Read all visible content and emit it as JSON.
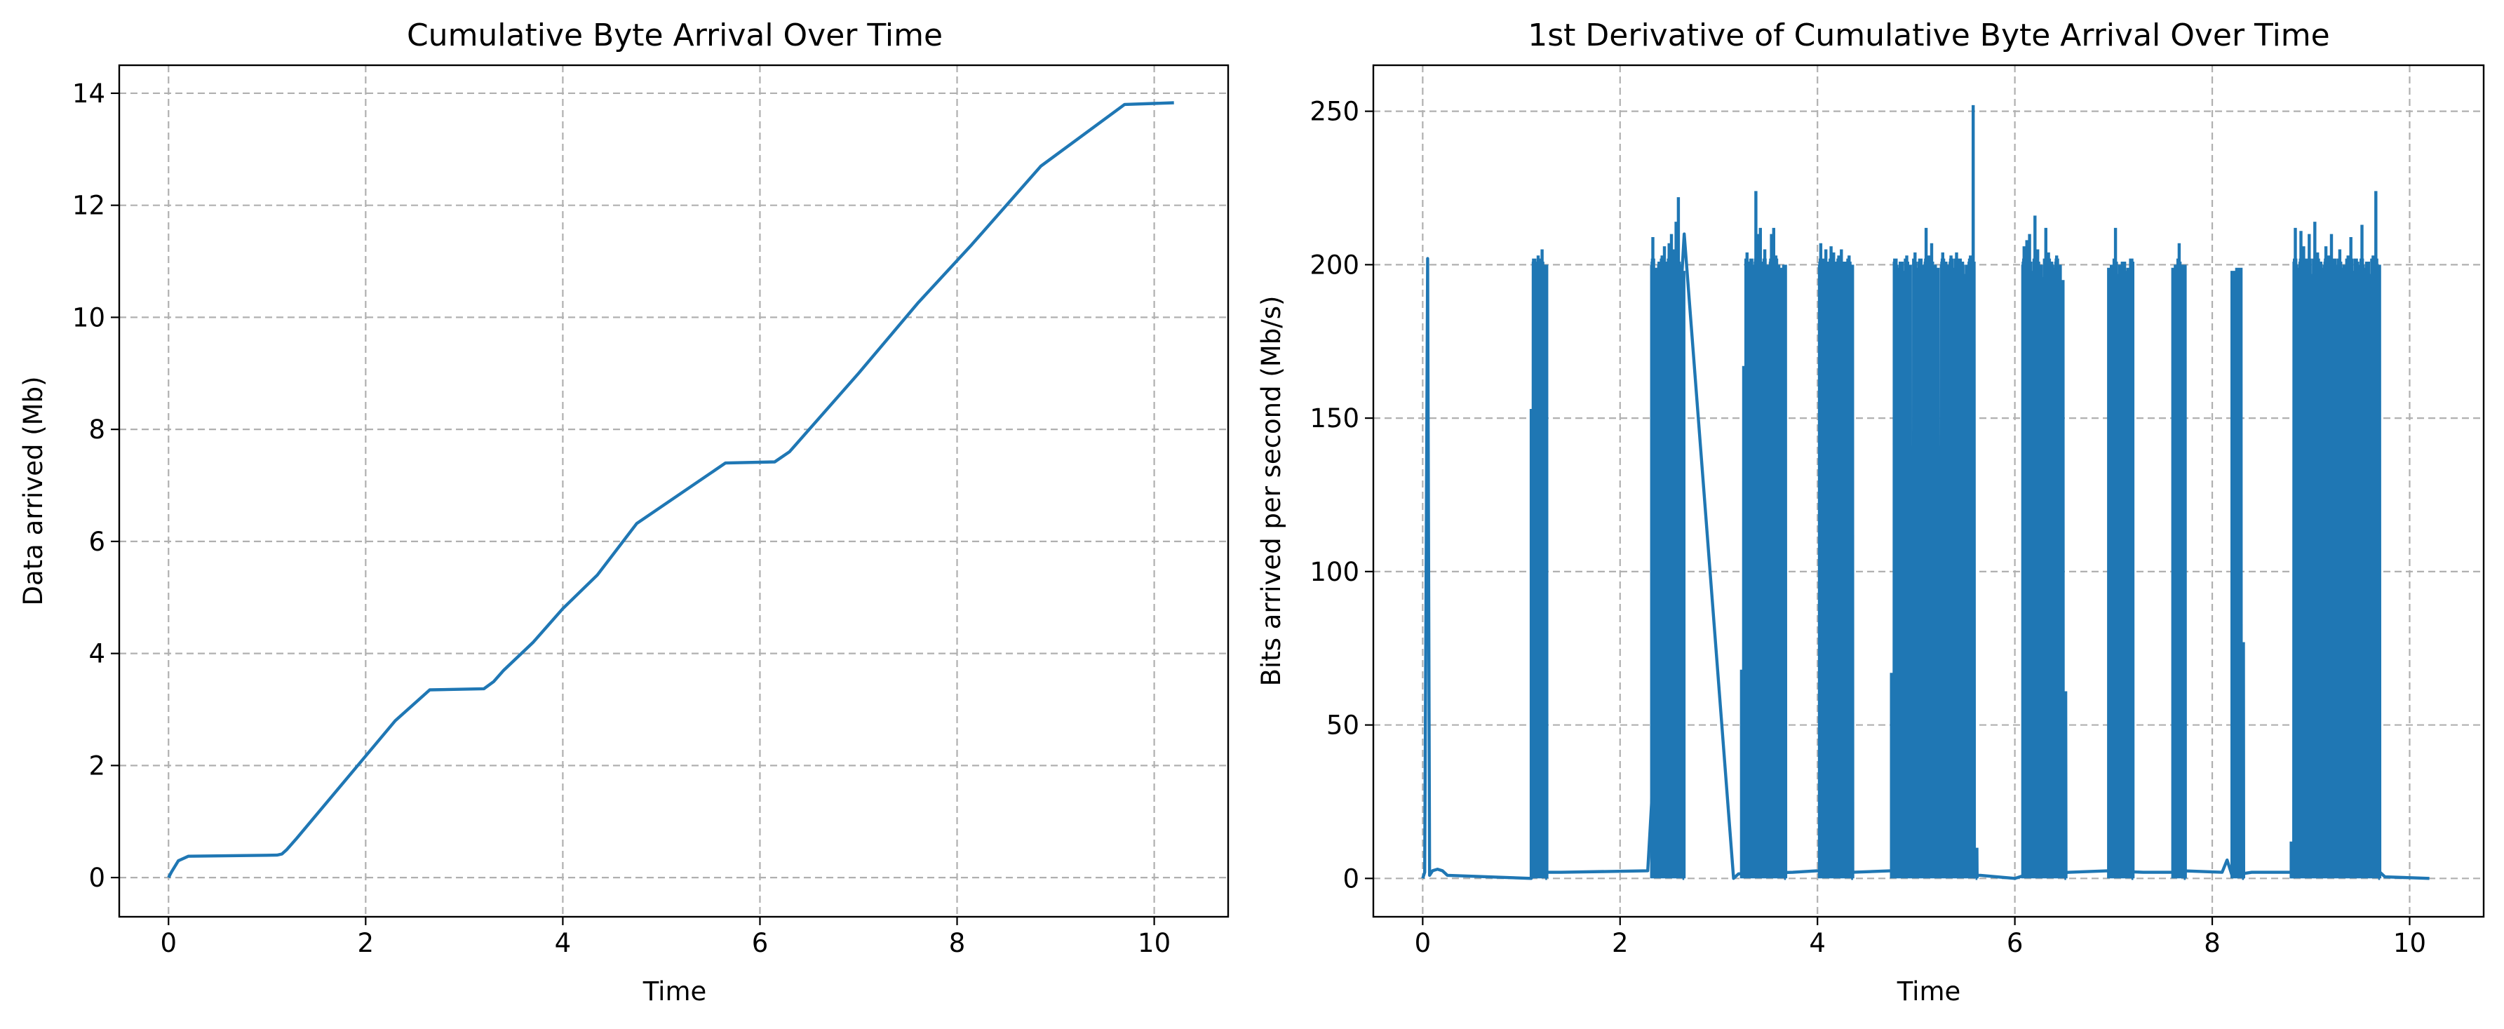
{
  "chart_data": [
    {
      "type": "line",
      "title": "Cumulative Byte Arrival Over Time",
      "xlabel": "Time",
      "ylabel": "Data arrived (Mb)",
      "xlim": [
        -0.5,
        10.75
      ],
      "ylim": [
        -0.7,
        14.5
      ],
      "xticks": [
        0,
        2,
        4,
        6,
        8,
        10
      ],
      "yticks": [
        0,
        2,
        4,
        6,
        8,
        10,
        12,
        14
      ],
      "grid": true,
      "series": [
        {
          "color": "#1f77b4",
          "points": [
            [
              0,
              0
            ],
            [
              0.03,
              0.1
            ],
            [
              0.1,
              0.3
            ],
            [
              0.2,
              0.38
            ],
            [
              1.1,
              0.4
            ],
            [
              1.15,
              0.42
            ],
            [
              1.2,
              0.5
            ],
            [
              1.3,
              0.7
            ],
            [
              2.3,
              2.8
            ],
            [
              2.65,
              3.35
            ],
            [
              3.2,
              3.37
            ],
            [
              3.3,
              3.5
            ],
            [
              3.4,
              3.7
            ],
            [
              3.7,
              4.2
            ],
            [
              4.0,
              4.8
            ],
            [
              4.35,
              5.4
            ],
            [
              4.75,
              6.32
            ],
            [
              5.65,
              7.4
            ],
            [
              6.15,
              7.42
            ],
            [
              6.3,
              7.6
            ],
            [
              6.4,
              7.8
            ],
            [
              7.0,
              9.0
            ],
            [
              7.6,
              10.25
            ],
            [
              8.15,
              11.3
            ],
            [
              8.85,
              12.7
            ],
            [
              9.7,
              13.8
            ],
            [
              10.2,
              13.83
            ]
          ]
        }
      ]
    },
    {
      "type": "line",
      "title": "1st Derivative of Cumulative Byte Arrival Over Time",
      "xlabel": "Time",
      "ylabel": "Bits arrived per second (Mb/s)",
      "xlim": [
        -0.5,
        10.75
      ],
      "ylim": [
        -12.5,
        265
      ],
      "xticks": [
        0,
        2,
        4,
        6,
        8,
        10
      ],
      "yticks": [
        0,
        50,
        100,
        150,
        200,
        250
      ],
      "grid": true,
      "baseline_points": [
        [
          0.0,
          0
        ],
        [
          0.02,
          2
        ],
        [
          0.05,
          202
        ],
        [
          0.07,
          1
        ],
        [
          0.1,
          2.5
        ],
        [
          0.15,
          3
        ],
        [
          0.2,
          2.5
        ],
        [
          0.25,
          1
        ],
        [
          1.1,
          0
        ],
        [
          1.12,
          2
        ],
        [
          1.4,
          2
        ],
        [
          2.28,
          2.5
        ],
        [
          2.65,
          210
        ],
        [
          3.15,
          0
        ],
        [
          3.2,
          1.5
        ],
        [
          3.75,
          2
        ],
        [
          4.0,
          2.5
        ],
        [
          4.1,
          2
        ],
        [
          4.35,
          2
        ],
        [
          4.75,
          2.5
        ],
        [
          5.6,
          1
        ],
        [
          5.65,
          1
        ],
        [
          6.0,
          0
        ],
        [
          6.1,
          1
        ],
        [
          6.55,
          2
        ],
        [
          6.95,
          2.5
        ],
        [
          7.3,
          2
        ],
        [
          7.6,
          2
        ],
        [
          7.7,
          2.5
        ],
        [
          8.1,
          2
        ],
        [
          8.15,
          6
        ],
        [
          8.2,
          1
        ],
        [
          8.4,
          2
        ],
        [
          8.8,
          2
        ],
        [
          9.7,
          2
        ],
        [
          9.75,
          0.5
        ],
        [
          10.2,
          0
        ]
      ],
      "bursts": [
        {
          "start": 1.1,
          "end": 1.26,
          "peaks": [
            153,
            202,
            200,
            203,
            199,
            205,
            180,
            200
          ]
        },
        {
          "start": 2.32,
          "end": 2.65,
          "peaks": [
            209,
            195,
            199,
            201,
            203,
            206,
            200,
            207,
            210,
            205,
            214,
            222,
            200,
            198
          ]
        },
        {
          "start": 3.23,
          "end": 3.68,
          "peaks": [
            68,
            167,
            204,
            195,
            202,
            200,
            224,
            210,
            212,
            201,
            205,
            198,
            200,
            210,
            212,
            203,
            200,
            199,
            195,
            200
          ]
        },
        {
          "start": 4.02,
          "end": 4.36,
          "peaks": [
            207,
            200,
            205,
            198,
            206,
            204,
            200,
            203,
            205,
            201,
            199,
            203,
            200
          ]
        },
        {
          "start": 4.75,
          "end": 5.62,
          "peaks": [
            67,
            202,
            199,
            201,
            198,
            203,
            200,
            110,
            204,
            199,
            202,
            200,
            212,
            203,
            207,
            200,
            199,
            102,
            204,
            201,
            200,
            203,
            199,
            204,
            202,
            201,
            197,
            200,
            203,
            252,
            10
          ]
        },
        {
          "start": 6.08,
          "end": 6.52,
          "peaks": [
            206,
            208,
            210,
            198,
            216,
            205,
            200,
            196,
            212,
            204,
            201,
            199,
            203,
            200,
            195,
            61
          ]
        },
        {
          "start": 6.95,
          "end": 7.2,
          "peaks": [
            199,
            200,
            212,
            197,
            200,
            201,
            198,
            199,
            202
          ]
        },
        {
          "start": 7.6,
          "end": 7.73,
          "peaks": [
            199,
            200,
            207,
            198,
            200
          ]
        },
        {
          "start": 8.2,
          "end": 8.32,
          "peaks": [
            198,
            197,
            199,
            199,
            77
          ]
        },
        {
          "start": 8.8,
          "end": 9.7,
          "peaks": [
            12,
            212,
            199,
            211,
            206,
            202,
            210,
            197,
            214,
            204,
            201,
            199,
            206,
            203,
            210,
            202,
            200,
            205,
            199,
            200,
            203,
            209,
            198,
            202,
            200,
            213,
            199,
            201,
            197,
            203,
            224,
            200
          ]
        }
      ]
    }
  ]
}
